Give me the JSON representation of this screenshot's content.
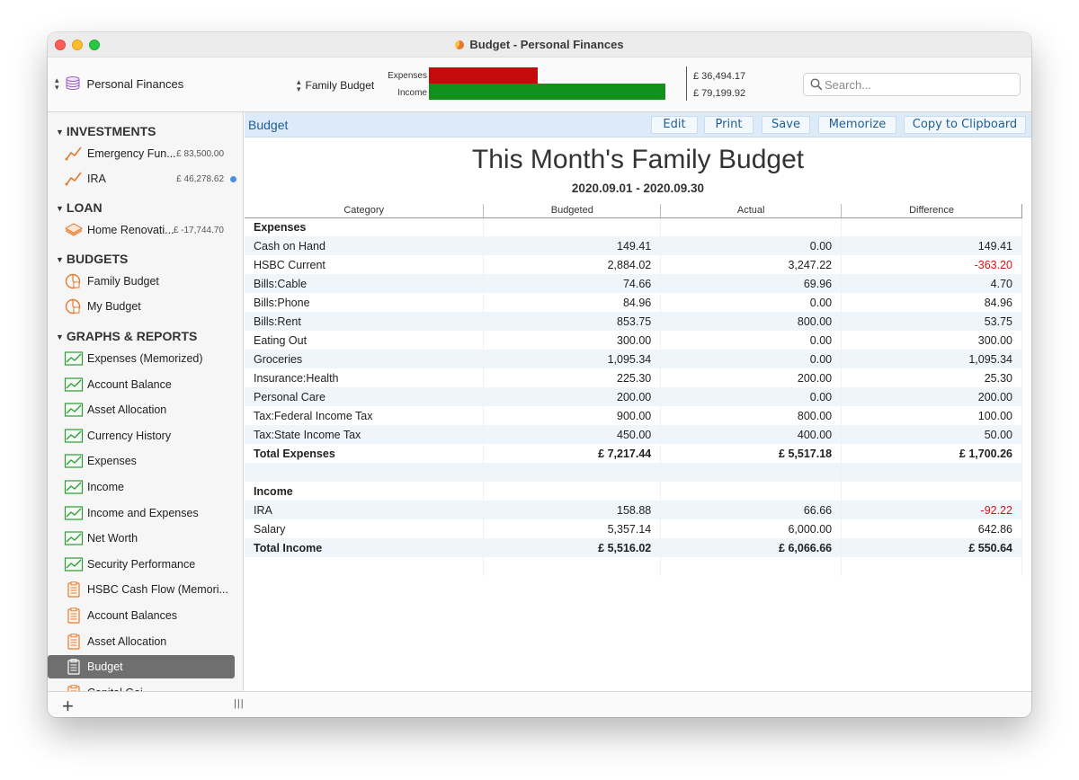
{
  "window": {
    "title": "Budget - Personal Finances"
  },
  "toolbar": {
    "account": "Personal Finances",
    "budget": "Family Budget",
    "bar_chart": {
      "expenses_label": "Expenses",
      "income_label": "Income",
      "expenses_value": "£ 36,494.17",
      "income_value": "£ 79,199.92",
      "expenses_fraction": 0.461,
      "income_fraction": 1.0,
      "expenses_color": "#c40a0a",
      "income_color": "#12901b"
    },
    "search_placeholder": "Search..."
  },
  "sidebar": {
    "investments": {
      "header": "INVESTMENTS",
      "items": [
        {
          "label": "Emergency Fun...",
          "amount": "£ 83,500.00",
          "icon": "investment-line-icon"
        },
        {
          "label": "IRA",
          "amount": "£ 46,278.62",
          "icon": "investment-line-icon"
        }
      ]
    },
    "loan": {
      "header": "LOAN",
      "items": [
        {
          "label": "Home Renovati...",
          "amount": "£ -17,744.70",
          "icon": "loan-stack-icon"
        }
      ]
    },
    "budgets": {
      "header": "BUDGETS",
      "items": [
        {
          "label": "Family Budget",
          "icon": "budget-pie-icon"
        },
        {
          "label": "My Budget",
          "icon": "budget-pie-icon"
        }
      ]
    },
    "reports": {
      "header": "GRAPHS & REPORTS",
      "items": [
        {
          "label": "Expenses (Memorized)",
          "icon": "graph-icon"
        },
        {
          "label": "Account Balance",
          "icon": "graph-icon"
        },
        {
          "label": "Asset Allocation",
          "icon": "graph-icon"
        },
        {
          "label": "Currency History",
          "icon": "graph-icon"
        },
        {
          "label": "Expenses",
          "icon": "graph-icon"
        },
        {
          "label": "Income",
          "icon": "graph-icon"
        },
        {
          "label": "Income and Expenses",
          "icon": "graph-icon"
        },
        {
          "label": "Net Worth",
          "icon": "graph-icon"
        },
        {
          "label": "Security Performance",
          "icon": "graph-icon"
        },
        {
          "label": "HSBC Cash Flow (Memori...",
          "icon": "report-clipboard-icon"
        },
        {
          "label": "Account Balances",
          "icon": "report-clipboard-icon"
        },
        {
          "label": "Asset Allocation",
          "icon": "report-clipboard-icon"
        },
        {
          "label": "Budget",
          "icon": "report-clipboard-icon",
          "selected": true
        },
        {
          "label": "Capital Gai...",
          "icon": "report-clipboard-icon"
        }
      ]
    }
  },
  "main": {
    "bar_title": "Budget",
    "buttons": {
      "edit": "Edit",
      "print": "Print",
      "save": "Save",
      "memorize": "Memorize",
      "copy": "Copy to Clipboard"
    },
    "report_title": "This Month's Family Budget",
    "report_dates": "2020.09.01 - 2020.09.30",
    "columns": [
      "Category",
      "Budgeted",
      "Actual",
      "Difference"
    ],
    "expenses_header": "Expenses",
    "expenses": [
      [
        "Cash on Hand",
        "149.41",
        "0.00",
        "149.41"
      ],
      [
        "HSBC Current",
        "2,884.02",
        "3,247.22",
        "-363.20"
      ],
      [
        "Bills:Cable",
        "74.66",
        "69.96",
        "4.70"
      ],
      [
        "Bills:Phone",
        "84.96",
        "0.00",
        "84.96"
      ],
      [
        "Bills:Rent",
        "853.75",
        "800.00",
        "53.75"
      ],
      [
        "Eating Out",
        "300.00",
        "0.00",
        "300.00"
      ],
      [
        "Groceries",
        "1,095.34",
        "0.00",
        "1,095.34"
      ],
      [
        "Insurance:Health",
        "225.30",
        "200.00",
        "25.30"
      ],
      [
        "Personal Care",
        "200.00",
        "0.00",
        "200.00"
      ],
      [
        "Tax:Federal Income Tax",
        "900.00",
        "800.00",
        "100.00"
      ],
      [
        "Tax:State Income Tax",
        "450.00",
        "400.00",
        "50.00"
      ]
    ],
    "expenses_total": [
      "Total Expenses",
      "£ 7,217.44",
      "£ 5,517.18",
      "£ 1,700.26"
    ],
    "income_header": "Income",
    "income": [
      [
        "IRA",
        "158.88",
        "66.66",
        "-92.22"
      ],
      [
        "Salary",
        "5,357.14",
        "6,000.00",
        "642.86"
      ]
    ],
    "income_total": [
      "Total Income",
      "£ 5,516.02",
      "£ 6,066.66",
      "£ 550.64"
    ],
    "negative_color": "#dd1111"
  }
}
